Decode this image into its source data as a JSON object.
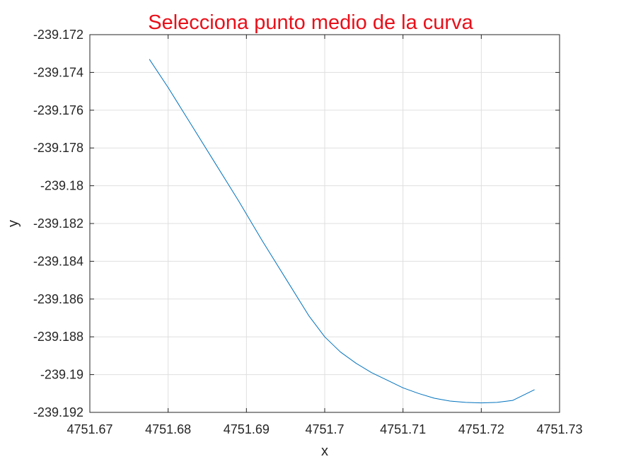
{
  "chart_data": {
    "type": "line",
    "title": "Selecciona punto medio de la curva",
    "title_color": "#e8101a",
    "xlabel": "x",
    "ylabel": "y",
    "xlim": [
      4751.67,
      4751.73
    ],
    "ylim": [
      -239.192,
      -239.172
    ],
    "xticks": [
      4751.67,
      4751.68,
      4751.69,
      4751.7,
      4751.71,
      4751.72,
      4751.73
    ],
    "xtick_labels": [
      "4751.67",
      "4751.68",
      "4751.69",
      "4751.7",
      "4751.71",
      "4751.72",
      "4751.73"
    ],
    "yticks": [
      -239.172,
      -239.174,
      -239.176,
      -239.178,
      -239.18,
      -239.182,
      -239.184,
      -239.186,
      -239.188,
      -239.19,
      -239.192
    ],
    "ytick_labels": [
      "-239.172",
      "-239.174",
      "-239.176",
      "-239.178",
      "-239.18",
      "-239.182",
      "-239.184",
      "-239.186",
      "-239.188",
      "-239.19",
      "-239.192"
    ],
    "grid": true,
    "series": [
      {
        "color": "#0072bd",
        "x": [
          4751.6776,
          4751.68,
          4751.683,
          4751.686,
          4751.689,
          4751.692,
          4751.695,
          4751.698,
          4751.7,
          4751.702,
          4751.704,
          4751.706,
          4751.708,
          4751.71,
          4751.712,
          4751.714,
          4751.716,
          4751.718,
          4751.72,
          4751.722,
          4751.724,
          4751.7268
        ],
        "y": [
          -239.1733,
          -239.1748,
          -239.1768,
          -239.1788,
          -239.1808,
          -239.1829,
          -239.1849,
          -239.1869,
          -239.188,
          -239.1888,
          -239.1894,
          -239.1899,
          -239.1903,
          -239.1907,
          -239.191,
          -239.19125,
          -239.1914,
          -239.19147,
          -239.1915,
          -239.19147,
          -239.19137,
          -239.1908
        ]
      }
    ]
  }
}
